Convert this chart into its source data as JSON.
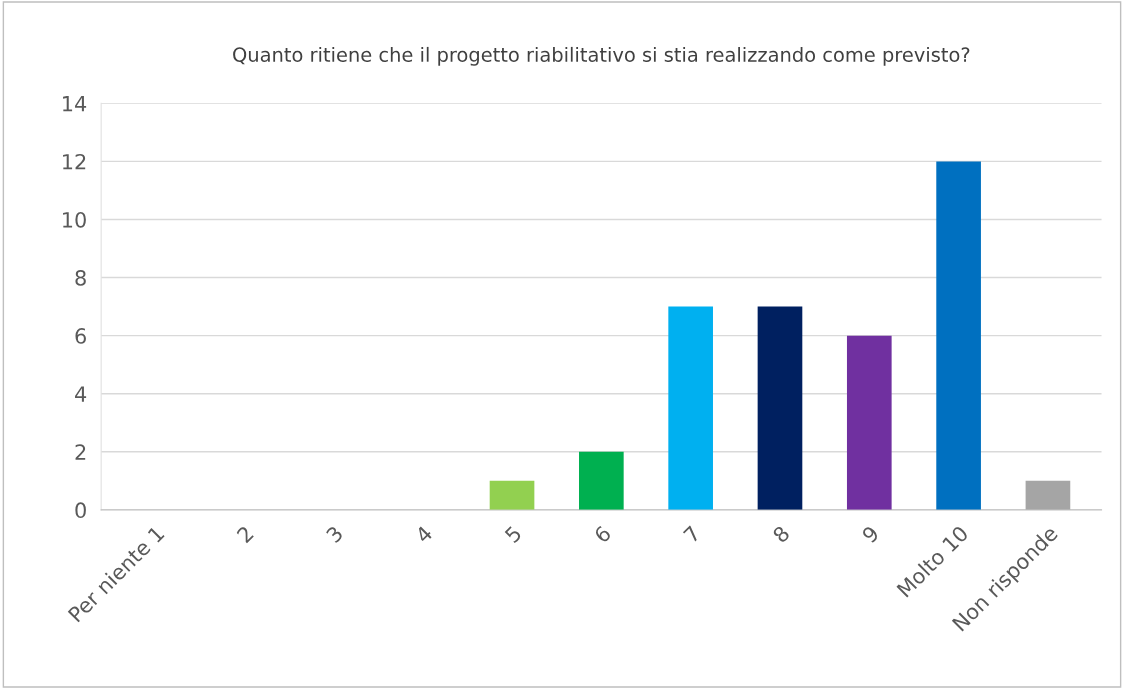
{
  "chart_data": {
    "type": "bar",
    "title": "Quanto ritiene che il progetto riabilitativo si stia realizzando come previsto?",
    "categories": [
      "Per niente 1",
      "2",
      "3",
      "4",
      "5",
      "6",
      "7",
      "8",
      "9",
      "Molto 10",
      "Non risponde"
    ],
    "values": [
      0,
      0,
      0,
      0,
      1,
      2,
      7,
      7,
      6,
      12,
      1
    ],
    "colors": [
      "#4472c4",
      "#ed7d31",
      "#a5a5a5",
      "#ffc000",
      "#92d050",
      "#00b050",
      "#00b0f0",
      "#002060",
      "#7030a0",
      "#0070c0",
      "#a5a5a5"
    ],
    "ylim": [
      0,
      14
    ],
    "yticks": [
      0,
      2,
      4,
      6,
      8,
      10,
      12,
      14
    ],
    "grid": "y"
  }
}
